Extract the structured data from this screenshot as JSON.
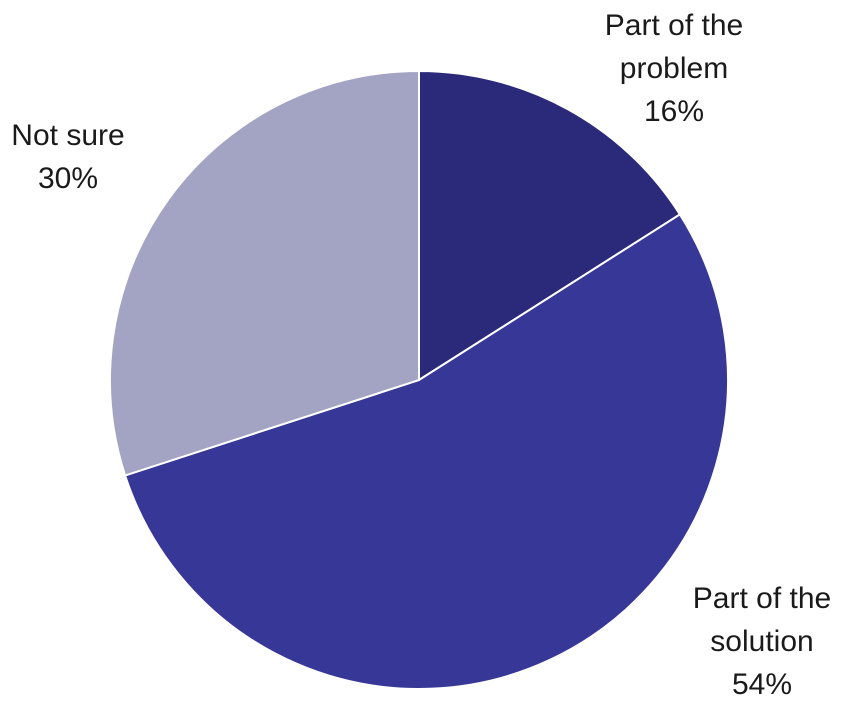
{
  "chart_data": {
    "type": "pie",
    "title": "",
    "start_angle_deg": 0,
    "direction": "clockwise",
    "slices": [
      {
        "name": "Part of the problem",
        "label_lines": [
          "Part of the",
          "problem"
        ],
        "value": 16,
        "value_label": "16%",
        "color": "#2b2a7a"
      },
      {
        "name": "Part of the solution",
        "label_lines": [
          "Part of the",
          "solution"
        ],
        "value": 54,
        "value_label": "54%",
        "color": "#363797"
      },
      {
        "name": "Not sure",
        "label_lines": [
          "Not sure"
        ],
        "value": 30,
        "value_label": "30%",
        "color": "#a3a3c4"
      }
    ],
    "legend": "none",
    "data_labels": "outside"
  }
}
